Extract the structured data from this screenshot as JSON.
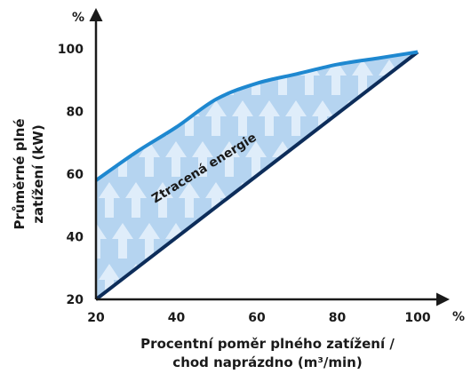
{
  "chart_data": {
    "type": "area",
    "x_unit": "%",
    "y_unit": "%",
    "xlabel_lines": [
      "Procentní poměr plného zatížení /",
      "chod naprázdno (m³/min)"
    ],
    "ylabel_lines": [
      "Průměrné plné",
      "zatížení (kW)"
    ],
    "xticks": [
      20,
      40,
      60,
      80,
      100
    ],
    "yticks": [
      20,
      40,
      60,
      80,
      100
    ],
    "xlim": [
      20,
      100
    ],
    "ylim": [
      20,
      100
    ],
    "grid": false,
    "annotation": "Ztracená energie",
    "series": [
      {
        "role": "upper",
        "color": "#1e88d0",
        "x": [
          20,
          30,
          40,
          50,
          60,
          70,
          80,
          90,
          100
        ],
        "y": [
          58,
          67,
          75,
          84,
          89,
          92,
          95,
          97,
          99
        ]
      },
      {
        "role": "lower",
        "color": "#0d2d5a",
        "x": [
          20,
          100
        ],
        "y": [
          20,
          99
        ]
      }
    ],
    "fill_color": "#b5d4f0",
    "arrow_color": "#e3f0fb"
  }
}
